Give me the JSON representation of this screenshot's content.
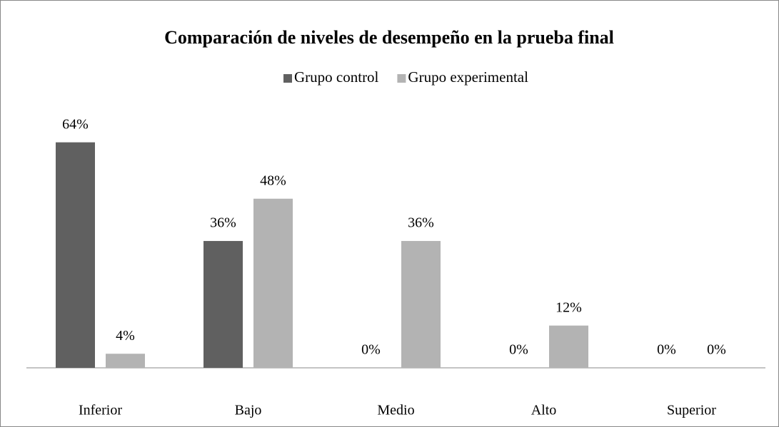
{
  "chart_data": {
    "type": "bar",
    "title": "Comparación de niveles de desempeño en la prueba final",
    "categories": [
      "Inferior",
      "Bajo",
      "Medio",
      "Alto",
      "Superior"
    ],
    "series": [
      {
        "name": "Grupo control",
        "color": "#606060",
        "values": [
          64,
          36,
          0,
          0,
          0
        ],
        "value_labels": [
          "64%",
          "36%",
          "0%",
          "0%",
          "0%"
        ]
      },
      {
        "name": "Grupo experimental",
        "color": "#b3b3b3",
        "values": [
          4,
          48,
          36,
          12,
          0
        ],
        "value_labels": [
          "4%",
          "48%",
          "36%",
          "12%",
          "0%"
        ]
      }
    ],
    "ylim": [
      0,
      70
    ],
    "legend": "top"
  }
}
